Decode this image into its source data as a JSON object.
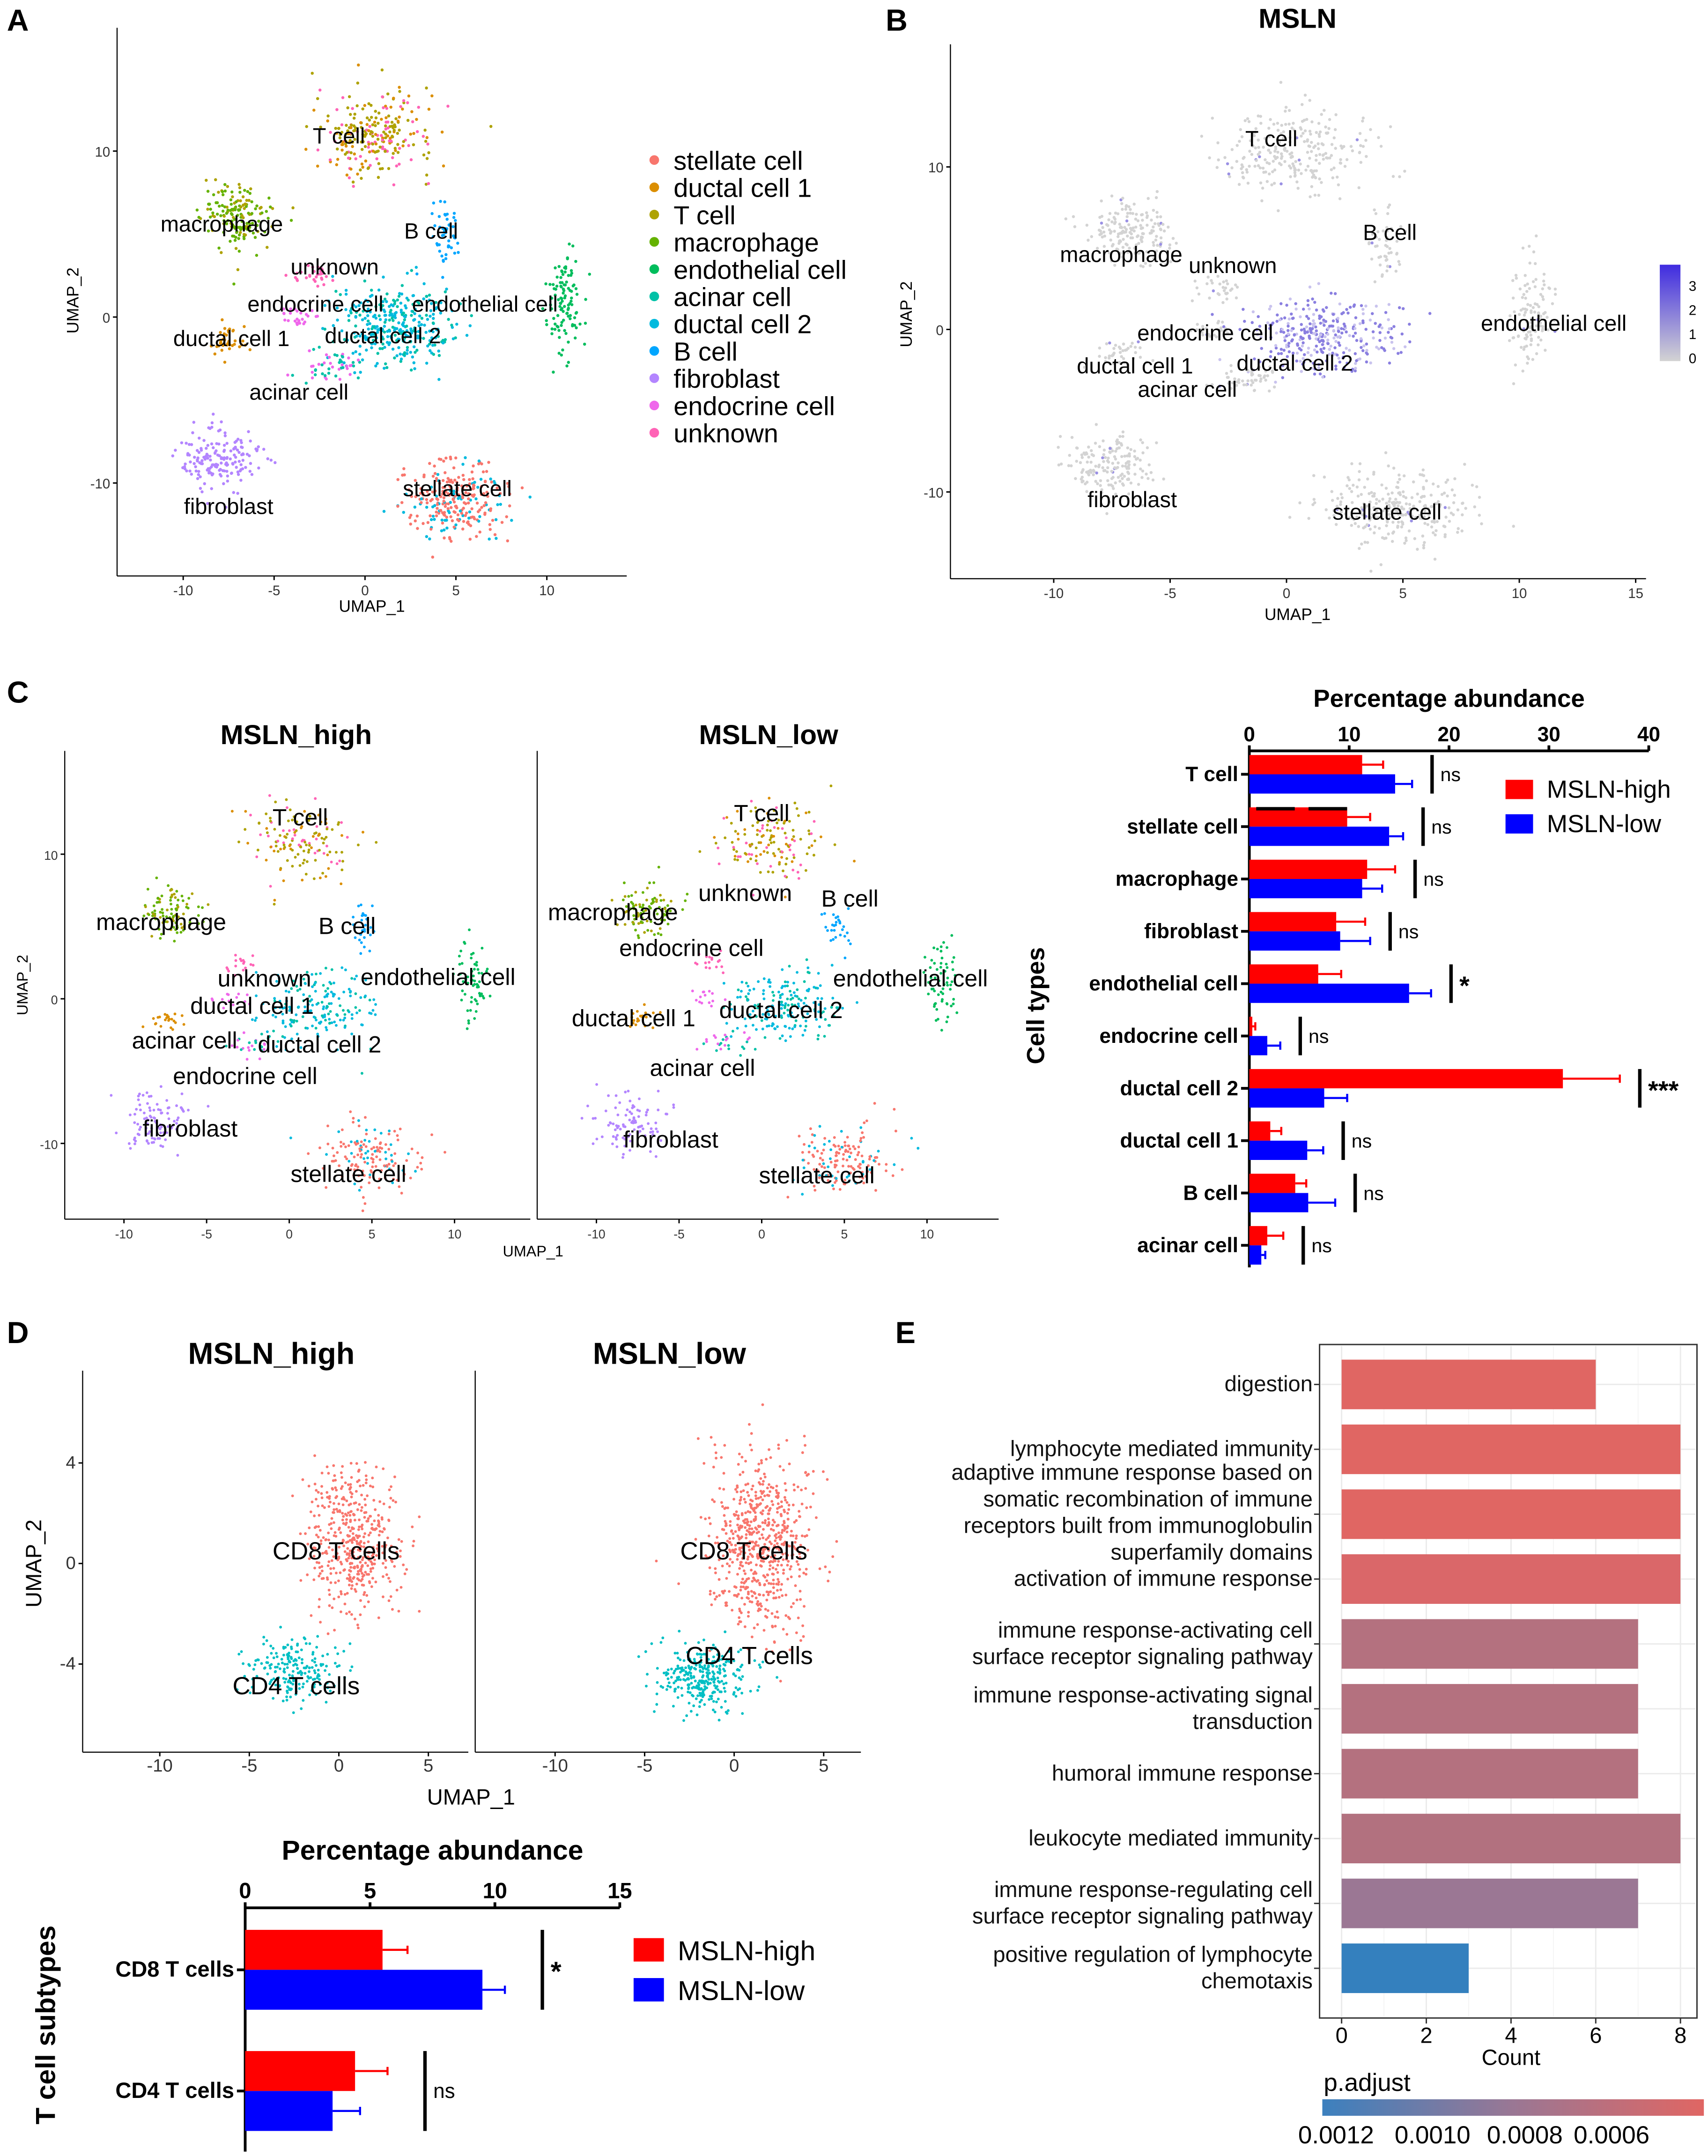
{
  "panel_letters": [
    "A",
    "B",
    "C",
    "D",
    "E"
  ],
  "umap_a": {
    "xlabel": "UMAP_1",
    "ylabel": "UMAP_2",
    "xticks": [
      "-10",
      "-5",
      "0",
      "5",
      "10"
    ],
    "yticks": [
      "-10",
      "0",
      "10"
    ],
    "legend": [
      {
        "label": "stellate cell",
        "color": "#F8766D"
      },
      {
        "label": "ductal cell 1",
        "color": "#DB8E00"
      },
      {
        "label": "T cell",
        "color": "#AEA200"
      },
      {
        "label": "macrophage",
        "color": "#64B200"
      },
      {
        "label": "endothelial cell",
        "color": "#00BD5C"
      },
      {
        "label": "acinar cell",
        "color": "#00C1A7"
      },
      {
        "label": "ductal cell 2",
        "color": "#00BADE"
      },
      {
        "label": "B cell",
        "color": "#00A6FF"
      },
      {
        "label": "fibroblast",
        "color": "#B385FF"
      },
      {
        "label": "endocrine cell",
        "color": "#EF67EB"
      },
      {
        "label": "unknown",
        "color": "#FF63B6"
      }
    ],
    "cluster_labels": [
      "T cell",
      "macrophage",
      "B cell",
      "unknown",
      "endocrine cell",
      "endothelial cell",
      "ductal cell 1",
      "ductal cell 2",
      "acinar cell",
      "fibroblast",
      "stellate cell"
    ]
  },
  "umap_b": {
    "title": "MSLN",
    "xlabel": "UMAP_1",
    "ylabel": "UMAP_2",
    "xticks": [
      "-10",
      "-5",
      "0",
      "5",
      "10",
      "15"
    ],
    "yticks": [
      "-10",
      "0",
      "10"
    ],
    "colorbar_ticks": [
      "3",
      "2",
      "1",
      "0"
    ],
    "colorbar_low": "#D3D3D3",
    "colorbar_high": "#3F2BE0",
    "cluster_labels": [
      "T cell",
      "B cell",
      "macrophage",
      "unknown",
      "endothelial cell",
      "endocrine cell",
      "ductal cell 1",
      "ductal cell 2",
      "acinar cell",
      "fibroblast",
      "stellate cell"
    ]
  },
  "umap_c": {
    "titles": [
      "MSLN_high",
      "MSLN_low"
    ],
    "xlabel": "UMAP_1",
    "ylabel": "UMAP_2",
    "xticks": [
      "-10",
      "-5",
      "0",
      "5",
      "10"
    ],
    "yticks": [
      "-10",
      "0",
      "10"
    ],
    "left_labels": [
      "T cell",
      "macrophage",
      "B cell",
      "unknown",
      "endothelial cell",
      "ductal cell 1",
      "acinar cell",
      "ductal cell 2",
      "endocrine cell",
      "fibroblast",
      "stellate cell"
    ],
    "right_labels": [
      "T cell",
      "unknown",
      "B cell",
      "macrophage",
      "endocrine cell",
      "endothelial cell",
      "ductal cell 1",
      "ductal cell 2",
      "acinar cell",
      "fibroblast",
      "stellate cell"
    ]
  },
  "umap_d": {
    "titles": [
      "MSLN_high",
      "MSLN_low"
    ],
    "xlabel": "UMAP_1",
    "ylabel": "UMAP_2",
    "xticks": [
      "-10",
      "-5",
      "0",
      "5"
    ],
    "yticks": [
      "-4",
      "0",
      "4"
    ],
    "labels": [
      "CD8 T cells",
      "CD4 T cells"
    ],
    "colors": {
      "CD8 T cells": "#F8766D",
      "CD4 T cells": "#00BFC4"
    }
  },
  "chart_data": [
    {
      "type": "bar",
      "orientation": "horizontal",
      "title": "Percentage abundance",
      "xlabel": "Percentage abundance",
      "ylabel": "Cell types",
      "xlim": [
        0,
        40
      ],
      "xticks": [
        "0",
        "10",
        "20",
        "30",
        "40"
      ],
      "categories": [
        "T cell",
        "stellate cell",
        "macrophage",
        "fibroblast",
        "endothelial cell",
        "endocrine cell",
        "ductal cell 2",
        "ductal cell 1",
        "B cell",
        "acinar cell"
      ],
      "series": [
        {
          "name": "MSLN-high",
          "color": "#FF0000",
          "values": [
            11.3,
            9.8,
            11.8,
            8.7,
            6.9,
            0.3,
            31.4,
            2.1,
            4.6,
            1.8
          ],
          "error_upper": [
            13.4,
            12.1,
            14.6,
            11.6,
            9.2,
            0.6,
            37.1,
            3.2,
            5.7,
            3.4
          ]
        },
        {
          "name": "MSLN-low",
          "color": "#0000FF",
          "values": [
            14.6,
            14.0,
            11.3,
            9.1,
            16.0,
            1.8,
            7.5,
            5.8,
            5.9,
            1.2
          ],
          "error_upper": [
            16.3,
            15.4,
            13.3,
            12.1,
            18.2,
            3.1,
            9.8,
            7.4,
            8.6,
            1.6
          ]
        }
      ],
      "significance": [
        "ns",
        "ns",
        "ns",
        "ns",
        "*",
        "ns",
        "***",
        "ns",
        "ns",
        "ns"
      ],
      "legend": "top-right"
    },
    {
      "type": "bar",
      "orientation": "horizontal",
      "title": "Percentage abundance",
      "ylabel": "T cell subtypes",
      "xlim": [
        0,
        15
      ],
      "xticks": [
        "0",
        "5",
        "10",
        "15"
      ],
      "categories": [
        "CD8 T cells",
        "CD4 T cells"
      ],
      "series": [
        {
          "name": "MSLN-high",
          "color": "#FF0000",
          "values": [
            5.5,
            4.4
          ],
          "error_upper": [
            6.5,
            5.7
          ]
        },
        {
          "name": "MSLN-low",
          "color": "#0000FF",
          "values": [
            9.5,
            3.5
          ],
          "error_upper": [
            10.4,
            4.6
          ]
        }
      ],
      "significance": [
        "*",
        "ns"
      ],
      "legend": "right"
    },
    {
      "type": "bar",
      "orientation": "horizontal",
      "xlabel": "Count",
      "xlim": [
        0,
        8.5
      ],
      "xticks": [
        "0",
        "2",
        "4",
        "6",
        "8"
      ],
      "categories": [
        {
          "lines": [
            "digestion"
          ],
          "count": 6,
          "color": "#E06663"
        },
        {
          "lines": [
            "lymphocyte mediated immunity"
          ],
          "count": 8,
          "color": "#E06663"
        },
        {
          "lines": [
            "adaptive immune response based on",
            "somatic recombination of immune",
            "receptors built from immunoglobulin",
            "superfamily domains"
          ],
          "count": 8,
          "color": "#E06663"
        },
        {
          "lines": [
            "activation of immune response"
          ],
          "count": 8,
          "color": "#DA6769"
        },
        {
          "lines": [
            "immune response-activating cell",
            "surface receptor signaling pathway"
          ],
          "count": 7,
          "color": "#B4717F"
        },
        {
          "lines": [
            "immune response-activating signal",
            "transduction"
          ],
          "count": 7,
          "color": "#B4717F"
        },
        {
          "lines": [
            "humoral immune response"
          ],
          "count": 7,
          "color": "#B4717F"
        },
        {
          "lines": [
            "leukocyte mediated immunity"
          ],
          "count": 8,
          "color": "#B2717F"
        },
        {
          "lines": [
            "immune response-regulating cell",
            "surface receptor signaling pathway"
          ],
          "count": 7,
          "color": "#9B7794"
        },
        {
          "lines": [
            "positive regulation of lymphocyte",
            "chemotaxis"
          ],
          "count": 3,
          "color": "#3480BE"
        }
      ],
      "colorbar": {
        "title": "p.adjust",
        "ticks": [
          "0.0012",
          "0.0010",
          "0.0008",
          "0.0006"
        ],
        "low_color": "#3C80BE",
        "high_color": "#E06663"
      }
    }
  ]
}
